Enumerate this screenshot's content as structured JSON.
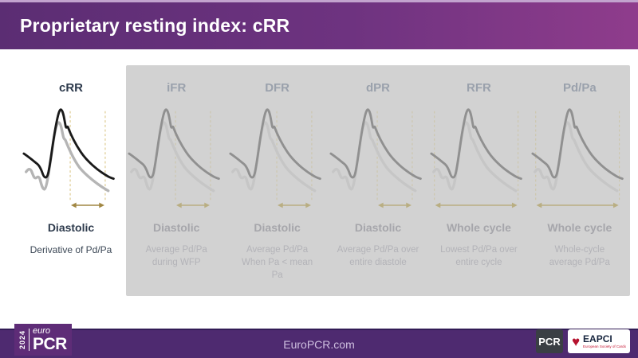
{
  "header": {
    "title": "Proprietary resting index: cRR"
  },
  "columns": [
    {
      "title": "cRR",
      "label": "Diastolic",
      "desc": "Derivative of Pd/Pa",
      "range": "diastolic",
      "active": true
    },
    {
      "title": "iFR",
      "label": "Diastolic",
      "desc": "Average Pd/Pa\nduring WFP",
      "range": "diastolic",
      "active": false
    },
    {
      "title": "DFR",
      "label": "Diastolic",
      "desc": "Average Pd/Pa\nWhen Pa < mean\nPa",
      "range": "diastolic",
      "active": false
    },
    {
      "title": "dPR",
      "label": "Diastolic",
      "desc": "Average Pd/Pa over\nentire diastole",
      "range": "diastolic",
      "active": false
    },
    {
      "title": "RFR",
      "label": "Whole cycle",
      "desc": "Lowest Pd/Pa over\nentire cycle",
      "range": "whole",
      "active": false
    },
    {
      "title": "Pd/Pa",
      "label": "Whole cycle",
      "desc": "Whole-cycle\naverage Pd/Pa",
      "range": "whole",
      "active": false
    }
  ],
  "footer": {
    "website": "EuroPCR.com",
    "logo_euro": {
      "year": "2024",
      "euro": "euro",
      "pcr": "PCR"
    },
    "logo_pcr": "PCR",
    "logo_eapci": {
      "name": "EAPCI",
      "tagline": "European Society of Cardiology"
    }
  },
  "colors": {
    "header_gradient_start": "#5b2d73",
    "header_gradient_end": "#8f3c8c",
    "footer_bg": "#4e2a70",
    "panel_bg": "#d2d2d2",
    "active_pa_curve": "#1a1a1a",
    "active_pd_curve": "#b5b5b5",
    "muted_pa_curve": "#909090",
    "muted_pd_curve": "#c6c6c6",
    "active_dash": "#dcc98d",
    "muted_dash": "#cdc7ad",
    "active_arrow": "#a18743",
    "muted_arrow": "#b9ae82"
  }
}
